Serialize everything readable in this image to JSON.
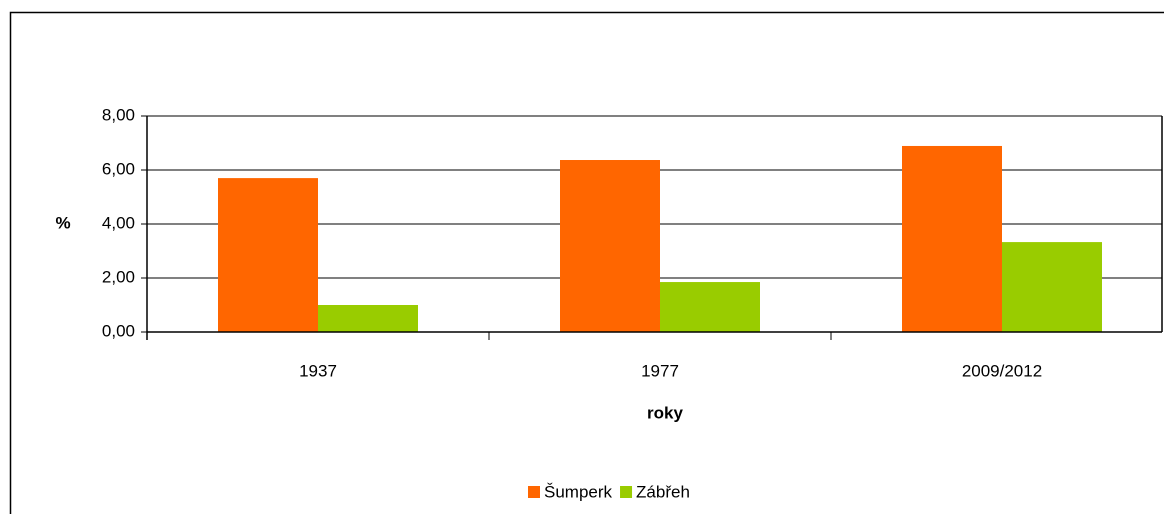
{
  "chart_data": {
    "type": "bar",
    "x_label": "roky",
    "y_label": "%",
    "categories": [
      "1937",
      "1977",
      "2009/2012"
    ],
    "series": [
      {
        "name": "Šumperk",
        "color": "#ff6600",
        "values": [
          5.7,
          6.37,
          6.89
        ]
      },
      {
        "name": "Zábřeh",
        "color": "#99cc00",
        "values": [
          1.0,
          1.85,
          3.33
        ]
      }
    ],
    "ylim": [
      0,
      8
    ],
    "yticks": [
      {
        "value": 0,
        "label": "0,00"
      },
      {
        "value": 2,
        "label": "2,00"
      },
      {
        "value": 4,
        "label": "4,00"
      },
      {
        "value": 6,
        "label": "6,00"
      },
      {
        "value": 8,
        "label": "8,00"
      }
    ],
    "grid": true,
    "legend": "bottom"
  }
}
